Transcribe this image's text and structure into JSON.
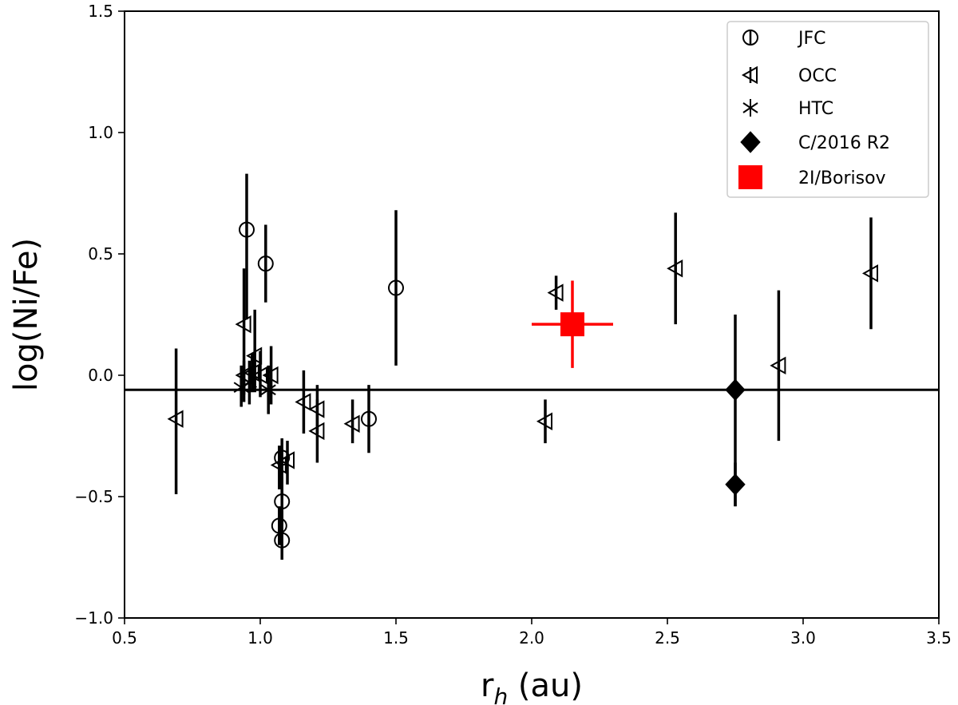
{
  "chart_data": {
    "type": "scatter",
    "xlabel_main": "r",
    "xlabel_sub": "h",
    "xlabel_tail": " (au)",
    "ylabel": "log(Ni/Fe)",
    "xlim": [
      0.5,
      3.5
    ],
    "ylim": [
      -1.0,
      1.5
    ],
    "xticks": [
      0.5,
      1.0,
      1.5,
      2.0,
      2.5,
      3.0,
      3.5
    ],
    "xtick_labels": [
      "0.5",
      "1.0",
      "1.5",
      "2.0",
      "2.5",
      "3.0",
      "3.5"
    ],
    "yticks": [
      -1.0,
      -0.5,
      0.0,
      0.5,
      1.0,
      1.5
    ],
    "ytick_labels": [
      "−1.0",
      "−0.5",
      "0.0",
      "0.5",
      "1.0",
      "1.5"
    ],
    "grid": false,
    "legend_position": "top-right",
    "reference_line_y": -0.06,
    "series": [
      {
        "name": "JFC",
        "marker": "circle",
        "points": [
          {
            "x": 0.95,
            "y": 0.6,
            "ylo": 0.37,
            "yhi": 0.23
          },
          {
            "x": 1.02,
            "y": 0.46,
            "ylo": 0.16,
            "yhi": 0.16
          },
          {
            "x": 1.5,
            "y": 0.36,
            "ylo": 0.32,
            "yhi": 0.32
          },
          {
            "x": 1.4,
            "y": -0.18,
            "ylo": 0.14,
            "yhi": 0.14
          },
          {
            "x": 1.08,
            "y": -0.34,
            "ylo": 0.16,
            "yhi": 0.08
          },
          {
            "x": 1.08,
            "y": -0.52,
            "ylo": 0.1,
            "yhi": 0.1
          },
          {
            "x": 1.07,
            "y": -0.62,
            "ylo": 0.08,
            "yhi": 0.08
          },
          {
            "x": 1.08,
            "y": -0.68,
            "ylo": 0.08,
            "yhi": 0.12
          }
        ]
      },
      {
        "name": "OCC",
        "marker": "triangle-left",
        "points": [
          {
            "x": 0.69,
            "y": -0.18,
            "ylo": 0.31,
            "yhi": 0.29
          },
          {
            "x": 0.94,
            "y": 0.21,
            "ylo": 0.32,
            "yhi": 0.23
          },
          {
            "x": 0.98,
            "y": 0.08,
            "ylo": 0.15,
            "yhi": 0.19
          },
          {
            "x": 0.94,
            "y": 0.0,
            "ylo": 0.08,
            "yhi": 0.06
          },
          {
            "x": 0.97,
            "y": 0.01,
            "ylo": 0.08,
            "yhi": 0.08
          },
          {
            "x": 1.0,
            "y": 0.0,
            "ylo": 0.09,
            "yhi": 0.1
          },
          {
            "x": 1.04,
            "y": 0.0,
            "ylo": 0.12,
            "yhi": 0.12
          },
          {
            "x": 1.1,
            "y": -0.35,
            "ylo": 0.1,
            "yhi": 0.08
          },
          {
            "x": 1.07,
            "y": -0.37,
            "ylo": 0.1,
            "yhi": 0.08
          },
          {
            "x": 1.16,
            "y": -0.11,
            "ylo": 0.13,
            "yhi": 0.13
          },
          {
            "x": 1.21,
            "y": -0.14,
            "ylo": 0.1,
            "yhi": 0.1
          },
          {
            "x": 1.21,
            "y": -0.23,
            "ylo": 0.13,
            "yhi": 0.13
          },
          {
            "x": 1.34,
            "y": -0.2,
            "ylo": 0.08,
            "yhi": 0.1
          },
          {
            "x": 2.05,
            "y": -0.19,
            "ylo": 0.09,
            "yhi": 0.09
          },
          {
            "x": 2.09,
            "y": 0.34,
            "ylo": 0.07,
            "yhi": 0.07
          },
          {
            "x": 2.53,
            "y": 0.44,
            "ylo": 0.23,
            "yhi": 0.23
          },
          {
            "x": 2.91,
            "y": 0.04,
            "ylo": 0.31,
            "yhi": 0.31
          },
          {
            "x": 3.25,
            "y": 0.42,
            "ylo": 0.23,
            "yhi": 0.23
          }
        ]
      },
      {
        "name": "HTC",
        "marker": "asterisk",
        "points": [
          {
            "x": 0.93,
            "y": -0.05,
            "ylo": 0.08,
            "yhi": 0.09
          },
          {
            "x": 0.96,
            "y": -0.03,
            "ylo": 0.09,
            "yhi": 0.09
          },
          {
            "x": 1.03,
            "y": -0.06,
            "ylo": 0.1,
            "yhi": 0.1
          }
        ]
      },
      {
        "name": "C/2016 R2",
        "marker": "diamond",
        "points": [
          {
            "x": 2.75,
            "y": -0.06,
            "ylo": 0.48,
            "yhi": 0.31
          },
          {
            "x": 2.75,
            "y": -0.45,
            "ylo": 0.09,
            "yhi": 0.09
          }
        ]
      },
      {
        "name": "2I/Borisov",
        "marker": "square",
        "color": "#ff0000",
        "points": [
          {
            "x": 2.15,
            "y": 0.21,
            "ylo": 0.18,
            "yhi": 0.18,
            "xlo": 0.15,
            "xhi": 0.15
          }
        ]
      }
    ]
  }
}
